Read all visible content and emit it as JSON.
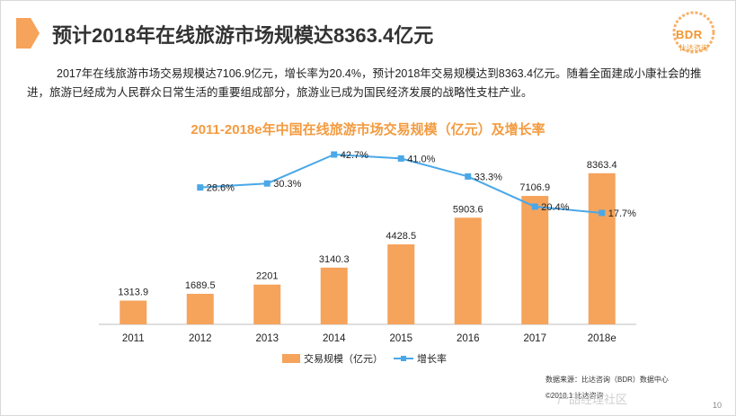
{
  "slide": {
    "title": "预计2018年在线旅游市场规模达8363.4亿元",
    "description": "2017年在线旅游市场交易规模达7106.9亿元，增长率为20.4%，预计2018年交易规模达到8363.4亿元。随着全面建成小康社会的推进，旅游已经成为人民群众日常生活的重要组成部分，旅游业已成为国民经济发展的战略性支柱产业。",
    "logo_text": "BDR",
    "logo_sub": "比达咨询",
    "source": "数据来源：比达咨询（BDR）数据中心",
    "copyright": "©2018.1  比达咨询",
    "watermark": "产品经理社区",
    "page_number": "10",
    "colors": {
      "accent": "#f6a35b",
      "bar": "#f6a35b",
      "line": "#4aa8e8"
    }
  },
  "chart_data": {
    "type": "bar",
    "title": "2011-2018e年中国在线旅游市场交易规模（亿元）及增长率",
    "categories": [
      "2011",
      "2012",
      "2013",
      "2014",
      "2015",
      "2016",
      "2017",
      "2018e"
    ],
    "series": [
      {
        "name": "交易规模（亿元）",
        "type": "bar",
        "values": [
          1313.9,
          1689.5,
          2201,
          3140.3,
          4428.5,
          5903.6,
          7106.9,
          8363.4
        ],
        "labels": [
          "1313.9",
          "1689.5",
          "2201",
          "3140.3",
          "4428.5",
          "5903.6",
          "7106.9",
          "8363.4"
        ]
      },
      {
        "name": "增长率",
        "type": "line",
        "values": [
          null,
          28.6,
          30.3,
          42.7,
          41.0,
          33.3,
          20.4,
          17.7
        ],
        "labels": [
          "",
          "28.6%",
          "30.3%",
          "42.7%",
          "41.0%",
          "33.3%",
          "20.4%",
          "17.7%"
        ]
      }
    ],
    "bar_ylim": [
      0,
      9000
    ],
    "line_ylim": [
      -30,
      55
    ],
    "legend": [
      "交易规模（亿元）",
      "增长率"
    ],
    "legend_position": "bottom"
  }
}
